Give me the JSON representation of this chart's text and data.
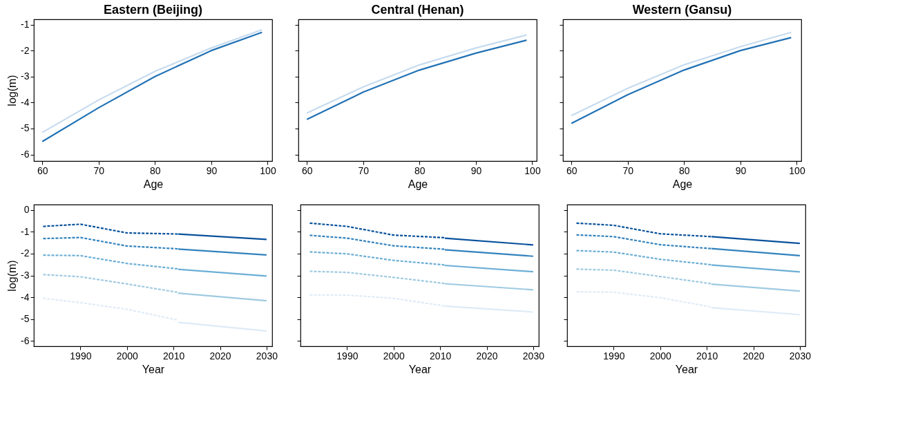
{
  "chart_data": [
    {
      "type": "line",
      "title": "Eastern (Beijing)",
      "xlabel": "Age",
      "ylabel": "log(m)",
      "xlim": [
        58.5,
        100.8
      ],
      "ylim": [
        -6.25,
        -0.8
      ],
      "xticks": [
        60,
        70,
        80,
        90,
        100
      ],
      "yticks": [
        -6,
        -5,
        -4,
        -3,
        -2,
        -1
      ],
      "grid": false,
      "line_style": "solid",
      "series": [
        {
          "color": "#c6dbef",
          "x": [
            60,
            70,
            80,
            90,
            99
          ],
          "values": [
            -5.15,
            -3.9,
            -2.8,
            -1.9,
            -1.2
          ]
        },
        {
          "color": "#2171b5",
          "x": [
            60,
            70,
            80,
            90,
            99
          ],
          "values": [
            -5.5,
            -4.2,
            -3.0,
            -2.0,
            -1.3
          ]
        }
      ]
    },
    {
      "type": "line",
      "title": "Central (Henan)",
      "xlabel": "Age",
      "xlim": [
        58.5,
        100.8
      ],
      "ylim": [
        -6.25,
        -0.8
      ],
      "xticks": [
        60,
        70,
        80,
        90,
        100
      ],
      "yticks": [
        -6,
        -5,
        -4,
        -3,
        -2,
        -1
      ],
      "grid": false,
      "tick_labels": "x",
      "line_style": "solid",
      "series": [
        {
          "color": "#c6dbef",
          "x": [
            60,
            70,
            80,
            90,
            99
          ],
          "values": [
            -4.4,
            -3.4,
            -2.55,
            -1.9,
            -1.4
          ]
        },
        {
          "color": "#2171b5",
          "x": [
            60,
            70,
            80,
            90,
            99
          ],
          "values": [
            -4.65,
            -3.6,
            -2.75,
            -2.1,
            -1.6
          ]
        }
      ]
    },
    {
      "type": "line",
      "title": "Western (Gansu)",
      "xlabel": "Age",
      "xlim": [
        58.5,
        100.8
      ],
      "ylim": [
        -6.25,
        -0.8
      ],
      "xticks": [
        60,
        70,
        80,
        90,
        100
      ],
      "yticks": [
        -6,
        -5,
        -4,
        -3,
        -2,
        -1
      ],
      "grid": false,
      "tick_labels": "x",
      "line_style": "solid",
      "series": [
        {
          "color": "#c6dbef",
          "x": [
            60,
            70,
            80,
            90,
            99
          ],
          "values": [
            -4.5,
            -3.45,
            -2.55,
            -1.85,
            -1.3
          ]
        },
        {
          "color": "#2171b5",
          "x": [
            60,
            70,
            80,
            90,
            99
          ],
          "values": [
            -4.8,
            -3.7,
            -2.75,
            -2.0,
            -1.5
          ]
        }
      ]
    },
    {
      "type": "line",
      "xlabel": "Year",
      "ylabel": "log(m)",
      "xlim": [
        1980,
        2031.2
      ],
      "ylim": [
        -6.25,
        0.25
      ],
      "xticks": [
        1990,
        2000,
        2010,
        2020,
        2030
      ],
      "yticks": [
        -6,
        -5,
        -4,
        -3,
        -2,
        -1,
        0
      ],
      "grid": false,
      "series": [
        {
          "color": "#deebf7",
          "line_style": "dashed",
          "x": [
            1982,
            1990,
            2000,
            2011
          ],
          "values": [
            -4.05,
            -4.25,
            -4.55,
            -5.05
          ]
        },
        {
          "color": "#9ecae1",
          "line_style": "dashed",
          "x": [
            1982,
            1990,
            2000,
            2011
          ],
          "values": [
            -2.96,
            -3.06,
            -3.39,
            -3.78
          ]
        },
        {
          "color": "#6baed6",
          "line_style": "dashed",
          "x": [
            1982,
            1990,
            2000,
            2011
          ],
          "values": [
            -2.07,
            -2.09,
            -2.45,
            -2.7
          ]
        },
        {
          "color": "#3182bd",
          "line_style": "dashed",
          "x": [
            1982,
            1990,
            2000,
            2011
          ],
          "values": [
            -1.31,
            -1.26,
            -1.65,
            -1.78
          ]
        },
        {
          "color": "#08519c",
          "line_style": "dashed",
          "x": [
            1982,
            1990,
            2000,
            2011
          ],
          "values": [
            -0.75,
            -0.65,
            -1.05,
            -1.1
          ]
        },
        {
          "color": "#deebf7",
          "line_style": "solid",
          "x": [
            2011,
            2030
          ],
          "values": [
            -5.15,
            -5.55
          ]
        },
        {
          "color": "#9ecae1",
          "line_style": "solid",
          "x": [
            2011,
            2030
          ],
          "values": [
            -3.81,
            -4.16
          ]
        },
        {
          "color": "#6baed6",
          "line_style": "solid",
          "x": [
            2011,
            2030
          ],
          "values": [
            -2.72,
            -3.03
          ]
        },
        {
          "color": "#3182bd",
          "line_style": "solid",
          "x": [
            2011,
            2030
          ],
          "values": [
            -1.79,
            -2.06
          ]
        },
        {
          "color": "#08519c",
          "line_style": "solid",
          "x": [
            2011,
            2030
          ],
          "values": [
            -1.1,
            -1.35
          ]
        }
      ]
    },
    {
      "type": "line",
      "xlabel": "Year",
      "xlim": [
        1980,
        2031.2
      ],
      "ylim": [
        -6.25,
        0.25
      ],
      "xticks": [
        1990,
        2000,
        2010,
        2020,
        2030
      ],
      "yticks": [
        -6,
        -5,
        -4,
        -3,
        -2,
        -1,
        0
      ],
      "grid": false,
      "tick_labels": "x",
      "series": [
        {
          "color": "#deebf7",
          "line_style": "dashed",
          "x": [
            1982,
            1990,
            2000,
            2011
          ],
          "values": [
            -3.9,
            -3.9,
            -4.05,
            -4.4
          ]
        },
        {
          "color": "#9ecae1",
          "line_style": "dashed",
          "x": [
            1982,
            1990,
            2000,
            2011
          ],
          "values": [
            -2.81,
            -2.86,
            -3.09,
            -3.37
          ]
        },
        {
          "color": "#6baed6",
          "line_style": "dashed",
          "x": [
            1982,
            1990,
            2000,
            2011
          ],
          "values": [
            -1.92,
            -2.01,
            -2.31,
            -2.52
          ]
        },
        {
          "color": "#3182bd",
          "line_style": "dashed",
          "x": [
            1982,
            1990,
            2000,
            2011
          ],
          "values": [
            -1.16,
            -1.29,
            -1.64,
            -1.8
          ]
        },
        {
          "color": "#08519c",
          "line_style": "dashed",
          "x": [
            1982,
            1990,
            2000,
            2011
          ],
          "values": [
            -0.6,
            -0.75,
            -1.15,
            -1.27
          ]
        },
        {
          "color": "#deebf7",
          "line_style": "solid",
          "x": [
            2011,
            2030
          ],
          "values": [
            -4.41,
            -4.68
          ]
        },
        {
          "color": "#9ecae1",
          "line_style": "solid",
          "x": [
            2011,
            2030
          ],
          "values": [
            -3.38,
            -3.66
          ]
        },
        {
          "color": "#6baed6",
          "line_style": "solid",
          "x": [
            2011,
            2030
          ],
          "values": [
            -2.54,
            -2.83
          ]
        },
        {
          "color": "#3182bd",
          "line_style": "solid",
          "x": [
            2011,
            2030
          ],
          "values": [
            -1.82,
            -2.12
          ]
        },
        {
          "color": "#08519c",
          "line_style": "solid",
          "x": [
            2011,
            2030
          ],
          "values": [
            -1.29,
            -1.6
          ]
        }
      ]
    },
    {
      "type": "line",
      "xlabel": "Year",
      "xlim": [
        1980,
        2031.2
      ],
      "ylim": [
        -6.25,
        0.25
      ],
      "xticks": [
        1990,
        2000,
        2010,
        2020,
        2030
      ],
      "yticks": [
        -6,
        -5,
        -4,
        -3,
        -2,
        -1,
        0
      ],
      "grid": false,
      "tick_labels": "x",
      "series": [
        {
          "color": "#deebf7",
          "line_style": "dashed",
          "x": [
            1982,
            1990,
            2000,
            2011
          ],
          "values": [
            -3.75,
            -3.77,
            -4.02,
            -4.45
          ]
        },
        {
          "color": "#9ecae1",
          "line_style": "dashed",
          "x": [
            1982,
            1990,
            2000,
            2011
          ],
          "values": [
            -2.71,
            -2.76,
            -3.05,
            -3.38
          ]
        },
        {
          "color": "#6baed6",
          "line_style": "dashed",
          "x": [
            1982,
            1990,
            2000,
            2011
          ],
          "values": [
            -1.86,
            -1.93,
            -2.26,
            -2.51
          ]
        },
        {
          "color": "#3182bd",
          "line_style": "dashed",
          "x": [
            1982,
            1990,
            2000,
            2011
          ],
          "values": [
            -1.14,
            -1.22,
            -1.59,
            -1.77
          ]
        },
        {
          "color": "#08519c",
          "line_style": "dashed",
          "x": [
            1982,
            1990,
            2000,
            2011
          ],
          "values": [
            -0.6,
            -0.7,
            -1.09,
            -1.22
          ]
        },
        {
          "color": "#deebf7",
          "line_style": "solid",
          "x": [
            2011,
            2030
          ],
          "values": [
            -4.48,
            -4.8
          ]
        },
        {
          "color": "#9ecae1",
          "line_style": "solid",
          "x": [
            2011,
            2030
          ],
          "values": [
            -3.4,
            -3.72
          ]
        },
        {
          "color": "#6baed6",
          "line_style": "solid",
          "x": [
            2011,
            2030
          ],
          "values": [
            -2.52,
            -2.84
          ]
        },
        {
          "color": "#3182bd",
          "line_style": "solid",
          "x": [
            2011,
            2030
          ],
          "values": [
            -1.77,
            -2.09
          ]
        },
        {
          "color": "#08519c",
          "line_style": "solid",
          "x": [
            2011,
            2030
          ],
          "values": [
            -1.22,
            -1.53
          ]
        }
      ]
    }
  ]
}
